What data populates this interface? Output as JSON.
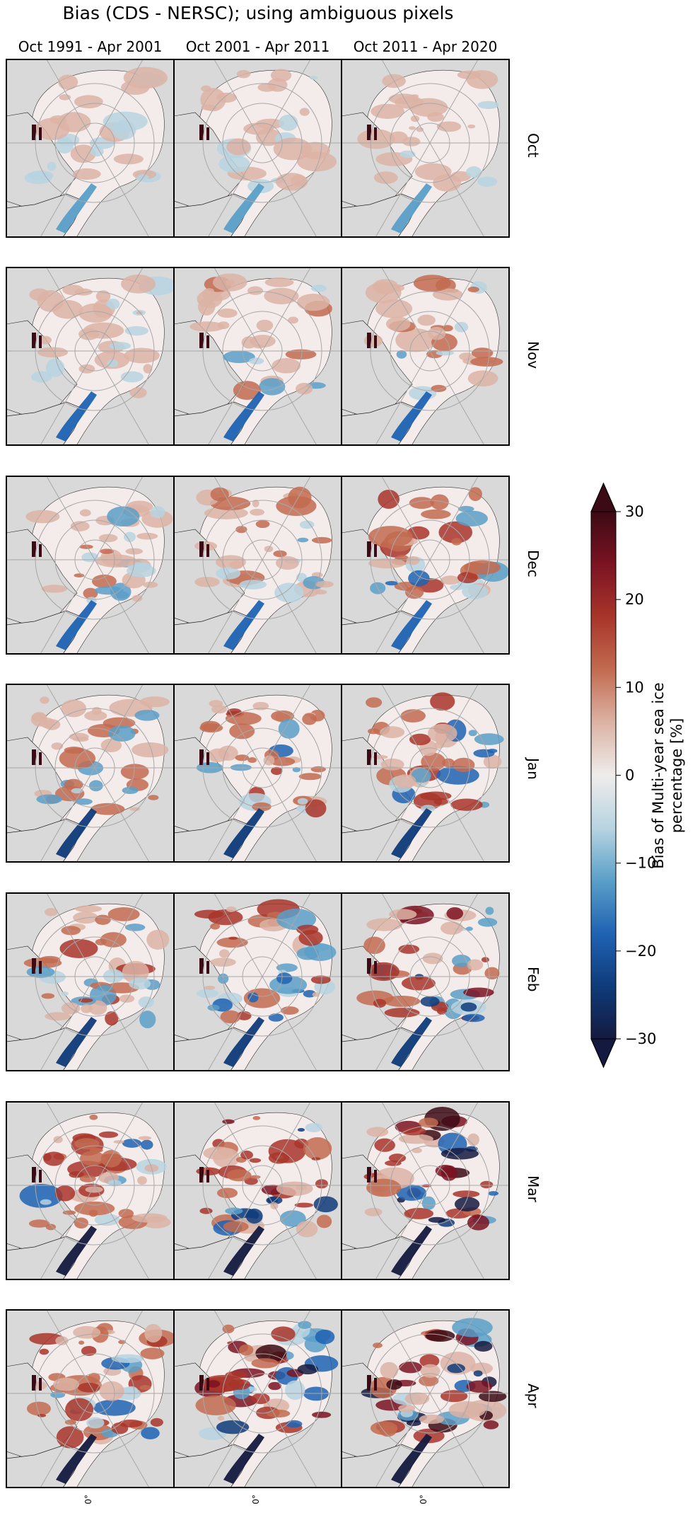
{
  "title": "Bias (CDS - NERSC); using ambiguous pixels",
  "columns": [
    "Oct 1991 - Apr 2001",
    "Oct 2001 - Apr 2011",
    "Oct 2011 - Apr 2020"
  ],
  "rows": [
    "Oct",
    "Nov",
    "Dec",
    "Jan",
    "Feb",
    "Mar",
    "Apr"
  ],
  "bottom_tick_label": "0°",
  "colorbar": {
    "label_line1": "Bias of Multi-year sea ice",
    "label_line2": "percentage [%]",
    "ticks": [
      30,
      20,
      10,
      0,
      -10,
      -20,
      -30
    ],
    "tick_text": [
      "30",
      "20",
      "10",
      "0",
      "−10",
      "−20",
      "−30"
    ],
    "min": -30,
    "max": 30,
    "extend": "both",
    "colors": [
      "#141a3f",
      "#0f3b7a",
      "#1f63b3",
      "#5a9fc8",
      "#b7d4e1",
      "#efeceb",
      "#dcb3a4",
      "#c26b50",
      "#a8352a",
      "#7b1322",
      "#3c0a14"
    ]
  },
  "chart_data": {
    "type": "heatmap",
    "title": "Bias (CDS - NERSC); using ambiguous pixels",
    "panel_columns": [
      "Oct 1991 - Apr 2001",
      "Oct 2001 - Apr 2011",
      "Oct 2011 - Apr 2020"
    ],
    "panel_rows": [
      "Oct",
      "Nov",
      "Dec",
      "Jan",
      "Feb",
      "Mar",
      "Apr"
    ],
    "colorbar_label": "Bias of Multi-year sea ice percentage [%]",
    "colorbar_range": [
      -30,
      30
    ],
    "colormap": "diverging blue-white-red (balance)",
    "map_projection": "north polar stereographic",
    "land_color": "#d9d9d9",
    "ocean_color": "#f4ecea",
    "grid": true
  }
}
